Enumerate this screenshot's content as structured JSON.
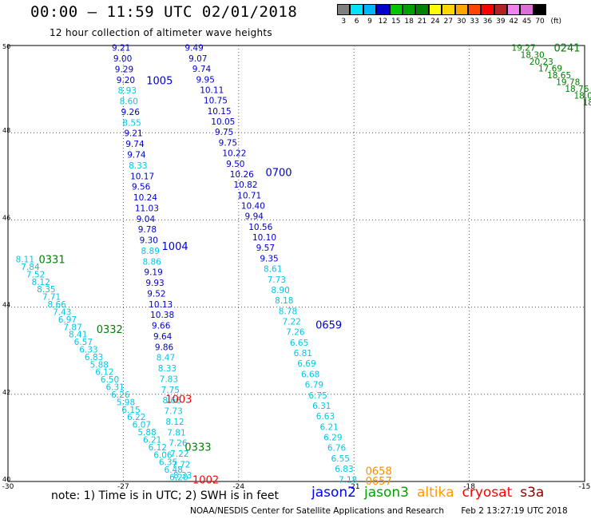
{
  "header": {
    "title": "00:00 – 11:59 UTC 02/01/2018",
    "subtitle": "12 hour collection of altimeter wave heights"
  },
  "color_scale": {
    "labels": [
      "3",
      "6",
      "9",
      "12",
      "15",
      "18",
      "21",
      "24",
      "27",
      "30",
      "33",
      "36",
      "39",
      "42",
      "45",
      "70",
      "(ft)"
    ],
    "colors": [
      "#7f7f7f",
      "#00e5ff",
      "#00b7ff",
      "#0000cd",
      "#00c800",
      "#00a000",
      "#008000",
      "#ffff00",
      "#ffd700",
      "#ffa500",
      "#ff4500",
      "#ff0000",
      "#b22222",
      "#ee82ee",
      "#da70d6",
      "#000000"
    ]
  },
  "chart_data": {
    "type": "scatter",
    "xlim": [
      -30,
      -15
    ],
    "ylim": [
      40,
      50
    ],
    "x_ticks": [
      "-30",
      "-27",
      "-24",
      "-21",
      "-18",
      "-15"
    ],
    "y_ticks": [
      "40",
      "42",
      "44",
      "46",
      "48",
      "50"
    ],
    "grid": true,
    "tracks": [
      {
        "satellite": "jason2",
        "color": "#0000cd",
        "time_labels": [
          {
            "text": "1005",
            "x": -26.4,
            "y": 49.2
          },
          {
            "text": "1004",
            "x": -26.0,
            "y": 45.4
          }
        ],
        "x_start": -27.3,
        "y_start": 49.95,
        "x_end": -25.7,
        "y_end": 40.15,
        "values": [
          "9.21",
          "9.00",
          "9.29",
          "9.20",
          "8.93",
          "8.60",
          "9.26",
          "8.55",
          "9.21",
          "9.74",
          "9.74",
          "8.33",
          "10.17",
          "9.56",
          "10.24",
          "11.03",
          "9.04",
          "9.78",
          "9.30",
          "8.89",
          "8.86",
          "9.19",
          "9.93",
          "9.52",
          "10.13",
          "10.38",
          "9.66",
          "9.64",
          "9.86",
          "8.47",
          "8.33",
          "7.83",
          "7.75",
          "8.66",
          "7.73",
          "8.12",
          "7.81",
          "7.26",
          "7.22",
          "7.72",
          "8.33"
        ]
      },
      {
        "satellite": "jason2",
        "color": "#0000cd",
        "time_labels": [
          {
            "text": "0700",
            "x": -23.3,
            "y": 47.1
          },
          {
            "text": "0659",
            "x": -22.0,
            "y": 43.6
          }
        ],
        "x_start": -25.4,
        "y_start": 49.95,
        "x_end": -21.4,
        "y_end": 40.05,
        "values": [
          "9.49",
          "9.07",
          "9.74",
          "9.95",
          "10.11",
          "10.75",
          "10.15",
          "10.05",
          "9.75",
          "9.75",
          "10.22",
          "9.50",
          "10.26",
          "10.82",
          "10.71",
          "10.40",
          "9.94",
          "10.56",
          "10.10",
          "9.57",
          "9.35",
          "8.61",
          "7.73",
          "8.90",
          "8.18",
          "8.78",
          "7.22",
          "7.26",
          "6.65",
          "6.81",
          "6.69",
          "6.68",
          "6.79",
          "6.75",
          "6.31",
          "6.63",
          "6.21",
          "6.29",
          "6.76",
          "6.55",
          "6.83",
          "7.18"
        ]
      },
      {
        "satellite": "jason3",
        "color": "#008000",
        "time_labels": [
          {
            "text": "0331",
            "x": -29.2,
            "y": 45.1
          },
          {
            "text": "0332",
            "x": -27.7,
            "y": 43.5
          }
        ],
        "x_start": -29.8,
        "y_start": 45.1,
        "x_end": -25.8,
        "y_end": 40.1,
        "values": [
          "8.11",
          "7.84",
          "7.52",
          "8.12",
          "8.35",
          "7.71",
          "8.66",
          "7.43",
          "6.97",
          "7.87",
          "8.41",
          "6.57",
          "6.33",
          "6.83",
          "5.88",
          "6.12",
          "6.50",
          "6.31",
          "6.26",
          "5.98",
          "6.15",
          "6.22",
          "6.07",
          "5.88",
          "6.21",
          "6.12",
          "6.06",
          "6.35",
          "6.48",
          "6.20"
        ]
      },
      {
        "satellite": "jason3",
        "color": "#008000",
        "time_labels": [
          {
            "text": "0241",
            "x": -15.8,
            "y": 49.95
          },
          {
            "text": "0333",
            "x": -25.4,
            "y": 40.8
          }
        ],
        "x_start": -16.9,
        "y_start": 49.95,
        "x_end": -15.05,
        "y_end": 48.7,
        "values": [
          "19.27",
          "18.30",
          "20.23",
          "17.69",
          "18.65",
          "19.78",
          "18.76",
          "18.0",
          "18"
        ]
      },
      {
        "satellite": "altika",
        "color": "#ff8c00",
        "time_labels": [
          {
            "text": "0658",
            "x": -20.7,
            "y": 40.25
          },
          {
            "text": "0657",
            "x": -20.7,
            "y": 40.02
          }
        ],
        "x_start": -21.1,
        "y_start": 40.25,
        "x_end": -21.1,
        "y_end": 40.25,
        "values": []
      },
      {
        "satellite": "cryosat",
        "color": "#ff0000",
        "time_labels": [
          {
            "text": "1003",
            "x": -25.9,
            "y": 41.9
          },
          {
            "text": "1002",
            "x": -25.2,
            "y": 40.05
          }
        ],
        "x_start": -25.7,
        "y_start": 40.1,
        "x_end": -25.7,
        "y_end": 40.1,
        "values": []
      }
    ]
  },
  "note": "note:  1) Time is in UTC;  2) SWH is in feet",
  "satellites": [
    {
      "name": "jason2",
      "color": "#0000ff"
    },
    {
      "name": "jason3",
      "color": "#00a000"
    },
    {
      "name": "altika",
      "color": "#ff9900"
    },
    {
      "name": "cryosat",
      "color": "#ff0000"
    },
    {
      "name": "s3a",
      "color": "#8b0000"
    }
  ],
  "footer": {
    "credit": "NOAA/NESDIS Center for Satellite Applications and Research",
    "date": "Feb  2 13:27:19 UTC 2018"
  }
}
